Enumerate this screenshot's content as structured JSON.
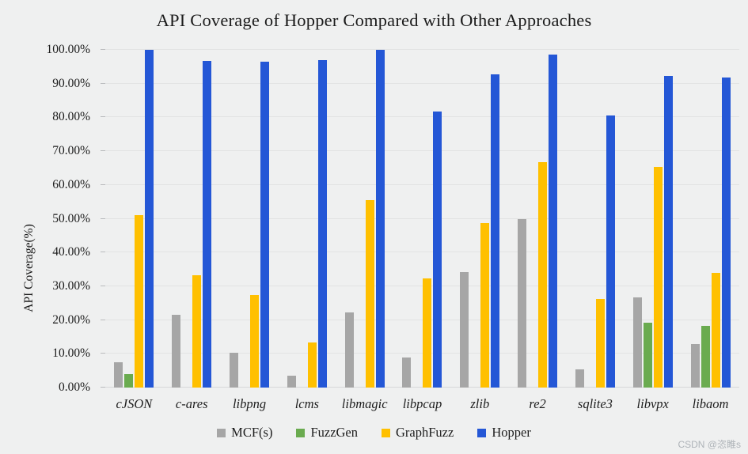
{
  "chart_data": {
    "type": "bar",
    "title": "API Coverage of Hopper Compared with Other Approaches",
    "xlabel": "",
    "ylabel": "API Coverage(%)",
    "ylim": [
      0,
      100
    ],
    "ytick_step": 10,
    "ytick_labels_top_to_bottom": [
      "100.00%",
      "90.00%",
      "80.00%",
      "70.00%",
      "60.00%",
      "50.00%",
      "40.00%",
      "30.00%",
      "20.00%",
      "10.00%",
      "0.00%"
    ],
    "grid": true,
    "legend_position": "bottom",
    "categories": [
      "cJSON",
      "c-ares",
      "libpng",
      "lcms",
      "libmagic",
      "libpcap",
      "zlib",
      "re2",
      "sqlite3",
      "libvpx",
      "libaom"
    ],
    "series": [
      {
        "name": "MCF(s)",
        "color": "#a6a6a6",
        "values": [
          7.5,
          21.5,
          10.4,
          3.5,
          22.2,
          9.0,
          34.3,
          50.0,
          5.5,
          26.8,
          12.9
        ]
      },
      {
        "name": "FuzzGen",
        "color": "#6aab4f",
        "values": [
          4.0,
          0,
          0,
          0,
          0,
          0,
          0,
          0,
          0,
          19.2,
          18.2
        ]
      },
      {
        "name": "GraphFuzz",
        "color": "#ffc000",
        "values": [
          51.0,
          33.2,
          27.3,
          13.3,
          55.4,
          32.3,
          48.7,
          66.8,
          26.3,
          65.3,
          34.0
        ]
      },
      {
        "name": "Hopper",
        "color": "#2457d6",
        "values": [
          100.0,
          96.7,
          96.6,
          96.9,
          100.0,
          81.8,
          92.7,
          98.5,
          80.6,
          92.3,
          91.9
        ]
      }
    ]
  },
  "watermark": "CSDN @恣睢s",
  "colors": {
    "background": "#eff0f0",
    "gridline": "#e2e3e3",
    "text": "#1c1c1c",
    "watermark": "#aeb3b8"
  }
}
